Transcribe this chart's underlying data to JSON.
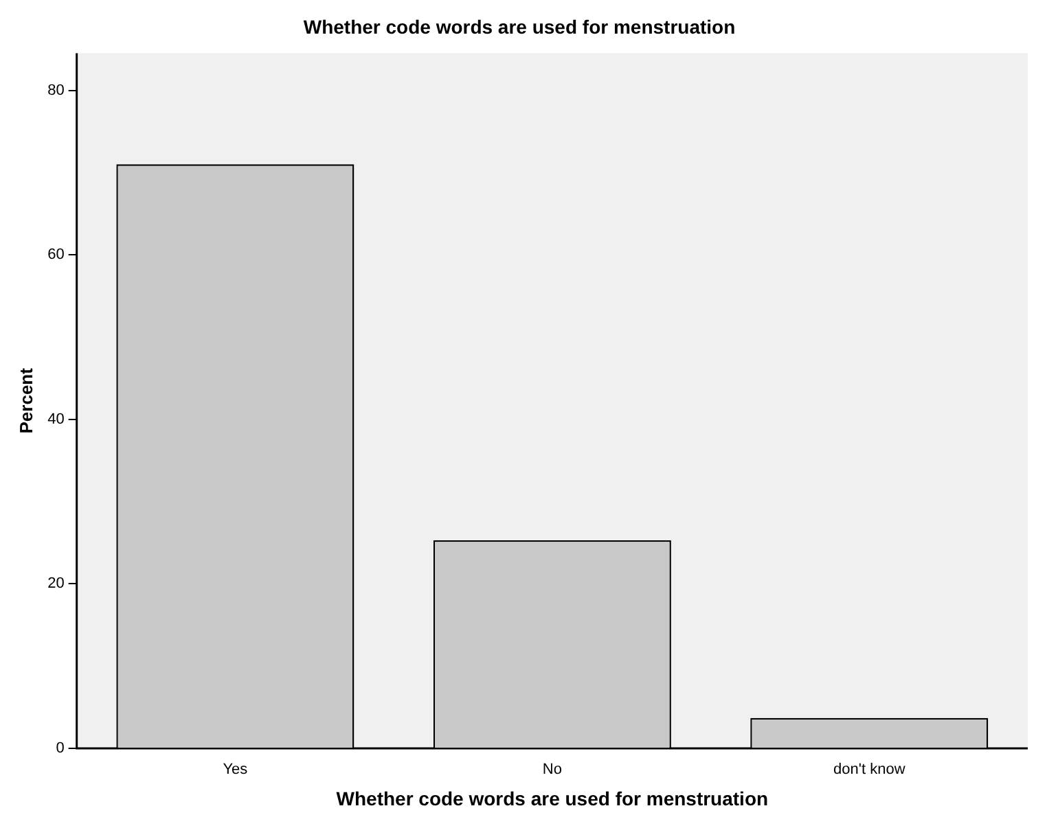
{
  "chart_data": {
    "type": "bar",
    "title": "Whether code words are used for menstruation",
    "xlabel": "Whether code words are used for menstruation",
    "ylabel": "Percent",
    "categories": [
      "Yes",
      "No",
      "don't know"
    ],
    "values": [
      71,
      25.3,
      3.7
    ],
    "color": "#c8c8c8",
    "ylim": [
      0,
      84.5
    ],
    "yticks": [
      0,
      20,
      40,
      60,
      80
    ],
    "grid": false,
    "legend": false
  }
}
